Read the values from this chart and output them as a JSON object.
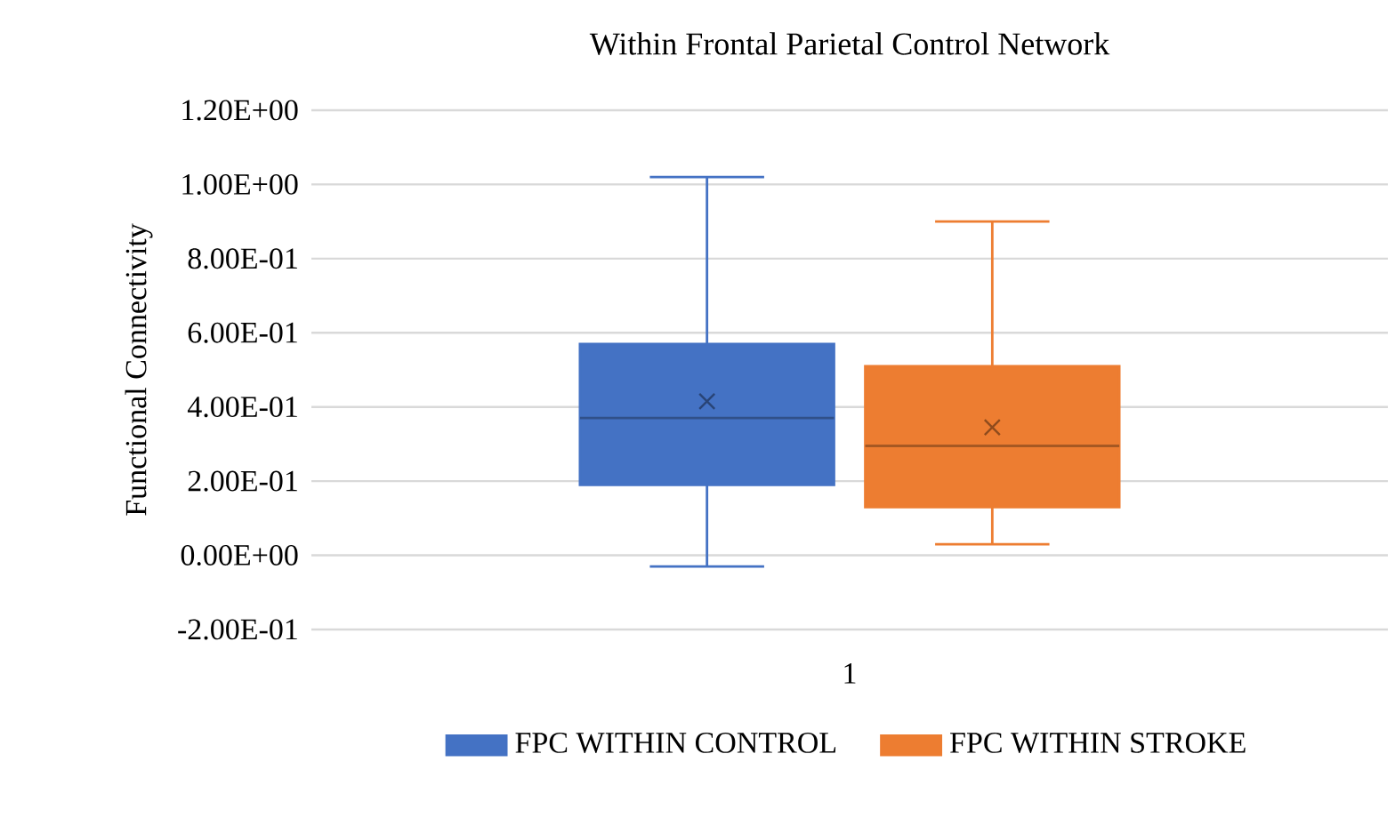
{
  "chart_data": {
    "type": "box",
    "title": "Within Frontal Parietal Control Network",
    "ylabel": "Functional Connectivity",
    "categories": [
      "1"
    ],
    "series": [
      {
        "name": "FPC WITHIN CONTROL",
        "color": "#4472c4",
        "boxes": [
          {
            "low": -0.03,
            "q1": 0.19,
            "median": 0.37,
            "q3": 0.57,
            "high": 1.02,
            "mean": 0.415
          }
        ]
      },
      {
        "name": "FPC WITHIN STROKE",
        "color": "#ed7d31",
        "boxes": [
          {
            "low": 0.03,
            "q1": 0.13,
            "median": 0.295,
            "q3": 0.51,
            "high": 0.9,
            "mean": 0.345
          }
        ]
      }
    ],
    "ylim": [
      -0.2,
      1.2
    ],
    "yticks": [
      {
        "value": -0.2,
        "label": "-2.00E-01"
      },
      {
        "value": 0,
        "label": "0.00E+00"
      },
      {
        "value": 0.2,
        "label": "2.00E-01"
      },
      {
        "value": 0.4,
        "label": "4.00E-01"
      },
      {
        "value": 0.6,
        "label": "6.00E-01"
      },
      {
        "value": 0.8,
        "label": "8.00E-01"
      },
      {
        "value": 1.0,
        "label": "1.00E+00"
      },
      {
        "value": 1.2,
        "label": "1.20E+00"
      }
    ],
    "grid": "y",
    "legend": "bottom",
    "marker": "cross"
  }
}
